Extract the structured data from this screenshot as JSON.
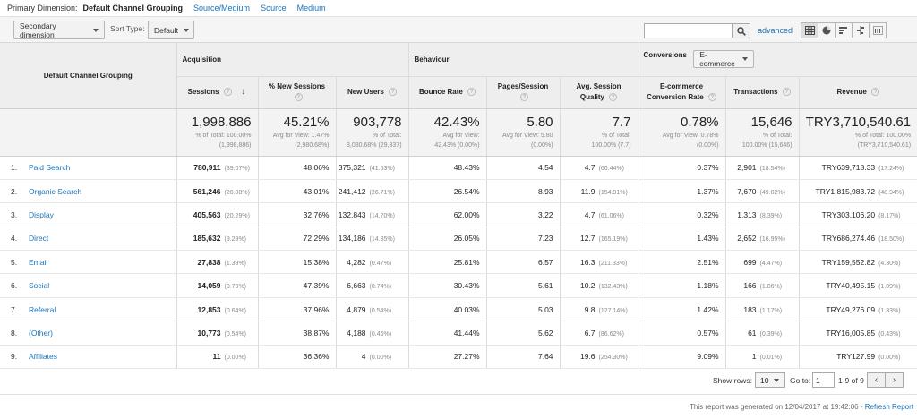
{
  "primary_dimension": {
    "label": "Primary Dimension:",
    "current": "Default Channel Grouping",
    "links": [
      "Source/Medium",
      "Source",
      "Medium"
    ]
  },
  "toolbar": {
    "secondary_dimension": "Secondary dimension",
    "sort_type_label": "Sort Type:",
    "sort_type_value": "Default",
    "search_value": "",
    "advanced_label": "advanced",
    "view_icons": [
      "table-view-icon",
      "pie-view-icon",
      "performance-view-icon",
      "comparison-view-icon",
      "term-cloud-view-icon"
    ]
  },
  "table": {
    "dimension_header": "Default Channel Grouping",
    "groups": {
      "acquisition": "Acquisition",
      "behaviour": "Behaviour",
      "conversions": "Conversions",
      "conversions_select": "E-commerce"
    },
    "columns": {
      "sessions": "Sessions",
      "new_sessions": "% New Sessions",
      "new_users": "New Users",
      "bounce_rate": "Bounce Rate",
      "pages_session": "Pages/Session",
      "avg_session_1": "Avg. Session",
      "avg_session_2": "Quality",
      "ecr_1": "E-commerce",
      "ecr_2": "Conversion Rate",
      "transactions": "Transactions",
      "revenue": "Revenue"
    },
    "totals": {
      "sessions": {
        "main": "1,998,886",
        "sub1": "% of Total: 100.00%",
        "sub2": "(1,998,886)"
      },
      "new_sessions": {
        "main": "45.21%",
        "sub1": "Avg for View: 1.47%",
        "sub2": "(2,980.68%)"
      },
      "new_users": {
        "main": "903,778",
        "sub1": "% of Total:",
        "sub2": "3,080.68% (29,337)"
      },
      "bounce_rate": {
        "main": "42.43%",
        "sub1": "Avg for View:",
        "sub2": "42.43% (0.00%)"
      },
      "pages_session": {
        "main": "5.80",
        "sub1": "Avg for View: 5.80",
        "sub2": "(0.00%)"
      },
      "quality": {
        "main": "7.7",
        "sub1": "% of Total:",
        "sub2": "100.00% (7.7)"
      },
      "ecr": {
        "main": "0.78%",
        "sub1": "Avg for View: 0.78%",
        "sub2": "(0.00%)"
      },
      "transactions": {
        "main": "15,646",
        "sub1": "% of Total:",
        "sub2": "100.00% (15,646)"
      },
      "revenue": {
        "main": "TRY3,710,540.61",
        "sub1": "% of Total: 100.00%",
        "sub2": "(TRY3,710,540.61)"
      }
    },
    "rows": [
      {
        "idx": "1.",
        "channel": "Paid Search",
        "sessions": "780,911",
        "sessions_pct": "(39.07%)",
        "new_sessions": "48.06%",
        "new_users": "375,321",
        "new_users_pct": "(41.53%)",
        "bounce_rate": "48.43%",
        "pages_session": "4.54",
        "quality": "4.7",
        "quality_pct": "(60.44%)",
        "ecr": "0.37%",
        "transactions": "2,901",
        "transactions_pct": "(18.54%)",
        "revenue": "TRY639,718.33",
        "revenue_pct": "(17.24%)"
      },
      {
        "idx": "2.",
        "channel": "Organic Search",
        "sessions": "561,246",
        "sessions_pct": "(28.08%)",
        "new_sessions": "43.01%",
        "new_users": "241,412",
        "new_users_pct": "(26.71%)",
        "bounce_rate": "26.54%",
        "pages_session": "8.93",
        "quality": "11.9",
        "quality_pct": "(154.91%)",
        "ecr": "1.37%",
        "transactions": "7,670",
        "transactions_pct": "(49.02%)",
        "revenue": "TRY1,815,983.72",
        "revenue_pct": "(48.94%)"
      },
      {
        "idx": "3.",
        "channel": "Display",
        "sessions": "405,563",
        "sessions_pct": "(20.29%)",
        "new_sessions": "32.76%",
        "new_users": "132,843",
        "new_users_pct": "(14.70%)",
        "bounce_rate": "62.00%",
        "pages_session": "3.22",
        "quality": "4.7",
        "quality_pct": "(61.06%)",
        "ecr": "0.32%",
        "transactions": "1,313",
        "transactions_pct": "(8.39%)",
        "revenue": "TRY303,106.20",
        "revenue_pct": "(8.17%)"
      },
      {
        "idx": "4.",
        "channel": "Direct",
        "sessions": "185,632",
        "sessions_pct": "(9.29%)",
        "new_sessions": "72.29%",
        "new_users": "134,186",
        "new_users_pct": "(14.85%)",
        "bounce_rate": "26.05%",
        "pages_session": "7.23",
        "quality": "12.7",
        "quality_pct": "(165.19%)",
        "ecr": "1.43%",
        "transactions": "2,652",
        "transactions_pct": "(16.95%)",
        "revenue": "TRY686,274.46",
        "revenue_pct": "(18.50%)"
      },
      {
        "idx": "5.",
        "channel": "Email",
        "sessions": "27,838",
        "sessions_pct": "(1.39%)",
        "new_sessions": "15.38%",
        "new_users": "4,282",
        "new_users_pct": "(0.47%)",
        "bounce_rate": "25.81%",
        "pages_session": "6.57",
        "quality": "16.3",
        "quality_pct": "(211.33%)",
        "ecr": "2.51%",
        "transactions": "699",
        "transactions_pct": "(4.47%)",
        "revenue": "TRY159,552.82",
        "revenue_pct": "(4.30%)"
      },
      {
        "idx": "6.",
        "channel": "Social",
        "sessions": "14,059",
        "sessions_pct": "(0.70%)",
        "new_sessions": "47.39%",
        "new_users": "6,663",
        "new_users_pct": "(0.74%)",
        "bounce_rate": "30.43%",
        "pages_session": "5.61",
        "quality": "10.2",
        "quality_pct": "(132.43%)",
        "ecr": "1.18%",
        "transactions": "166",
        "transactions_pct": "(1.06%)",
        "revenue": "TRY40,495.15",
        "revenue_pct": "(1.09%)"
      },
      {
        "idx": "7.",
        "channel": "Referral",
        "sessions": "12,853",
        "sessions_pct": "(0.64%)",
        "new_sessions": "37.96%",
        "new_users": "4,879",
        "new_users_pct": "(0.54%)",
        "bounce_rate": "40.03%",
        "pages_session": "5.03",
        "quality": "9.8",
        "quality_pct": "(127.14%)",
        "ecr": "1.42%",
        "transactions": "183",
        "transactions_pct": "(1.17%)",
        "revenue": "TRY49,276.09",
        "revenue_pct": "(1.33%)"
      },
      {
        "idx": "8.",
        "channel": "(Other)",
        "sessions": "10,773",
        "sessions_pct": "(0.54%)",
        "new_sessions": "38.87%",
        "new_users": "4,188",
        "new_users_pct": "(0.46%)",
        "bounce_rate": "41.44%",
        "pages_session": "5.62",
        "quality": "6.7",
        "quality_pct": "(86.62%)",
        "ecr": "0.57%",
        "transactions": "61",
        "transactions_pct": "(0.39%)",
        "revenue": "TRY16,005.85",
        "revenue_pct": "(0.43%)"
      },
      {
        "idx": "9.",
        "channel": "Affiliates",
        "sessions": "11",
        "sessions_pct": "(0.00%)",
        "new_sessions": "36.36%",
        "new_users": "4",
        "new_users_pct": "(0.00%)",
        "bounce_rate": "27.27%",
        "pages_session": "7.64",
        "quality": "19.6",
        "quality_pct": "(254.30%)",
        "ecr": "9.09%",
        "transactions": "1",
        "transactions_pct": "(0.01%)",
        "revenue": "TRY127.99",
        "revenue_pct": "(0.00%)"
      }
    ]
  },
  "footer": {
    "show_rows_label": "Show rows:",
    "show_rows_value": "10",
    "goto_label": "Go to:",
    "goto_value": "1",
    "range": "1-9 of 9",
    "prev": "‹",
    "next": "›",
    "generated": "This report was generated on 12/04/2017 at 19:42:06 -",
    "refresh": "Refresh Report"
  }
}
